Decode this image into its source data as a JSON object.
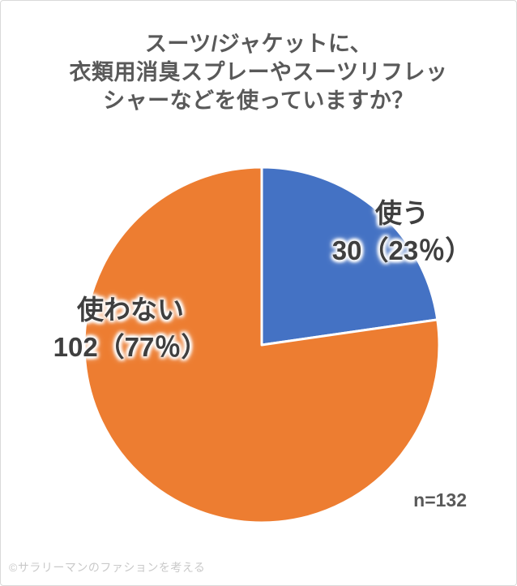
{
  "page": {
    "background": "#ffffff",
    "border_color": "#d9d9d9"
  },
  "title": {
    "text": "スーツ/ジャケットに、\n衣類用消臭スプレーやスーツリフレッ\nシャーなどを使っていますか？",
    "color": "#595959"
  },
  "sample_size": {
    "text": "n=132",
    "color": "#595959"
  },
  "credit": {
    "text": "©サラリーマンのファションを考える",
    "color": "#c9c9c9"
  },
  "chart_data": {
    "type": "pie",
    "title": "スーツ/ジャケットに、衣類用消臭スプレーやスーツリフレッシャーなどを使っていますか？",
    "total": 132,
    "total_label": "n=132",
    "start_angle_deg": 0,
    "direction": "clockwise",
    "legend_position": "none",
    "data_label_format": "label + count（percent％）",
    "slices": [
      {
        "label": "使う",
        "count": 30,
        "percent": 23,
        "value_label": "30（23％）",
        "color": "#4472C4"
      },
      {
        "label": "使わない",
        "count": 102,
        "percent": 77,
        "value_label": "102（77％）",
        "color": "#ED7D31"
      }
    ],
    "slice_border_color": "#ffffff",
    "label_text_color": "#3f3f3f"
  }
}
